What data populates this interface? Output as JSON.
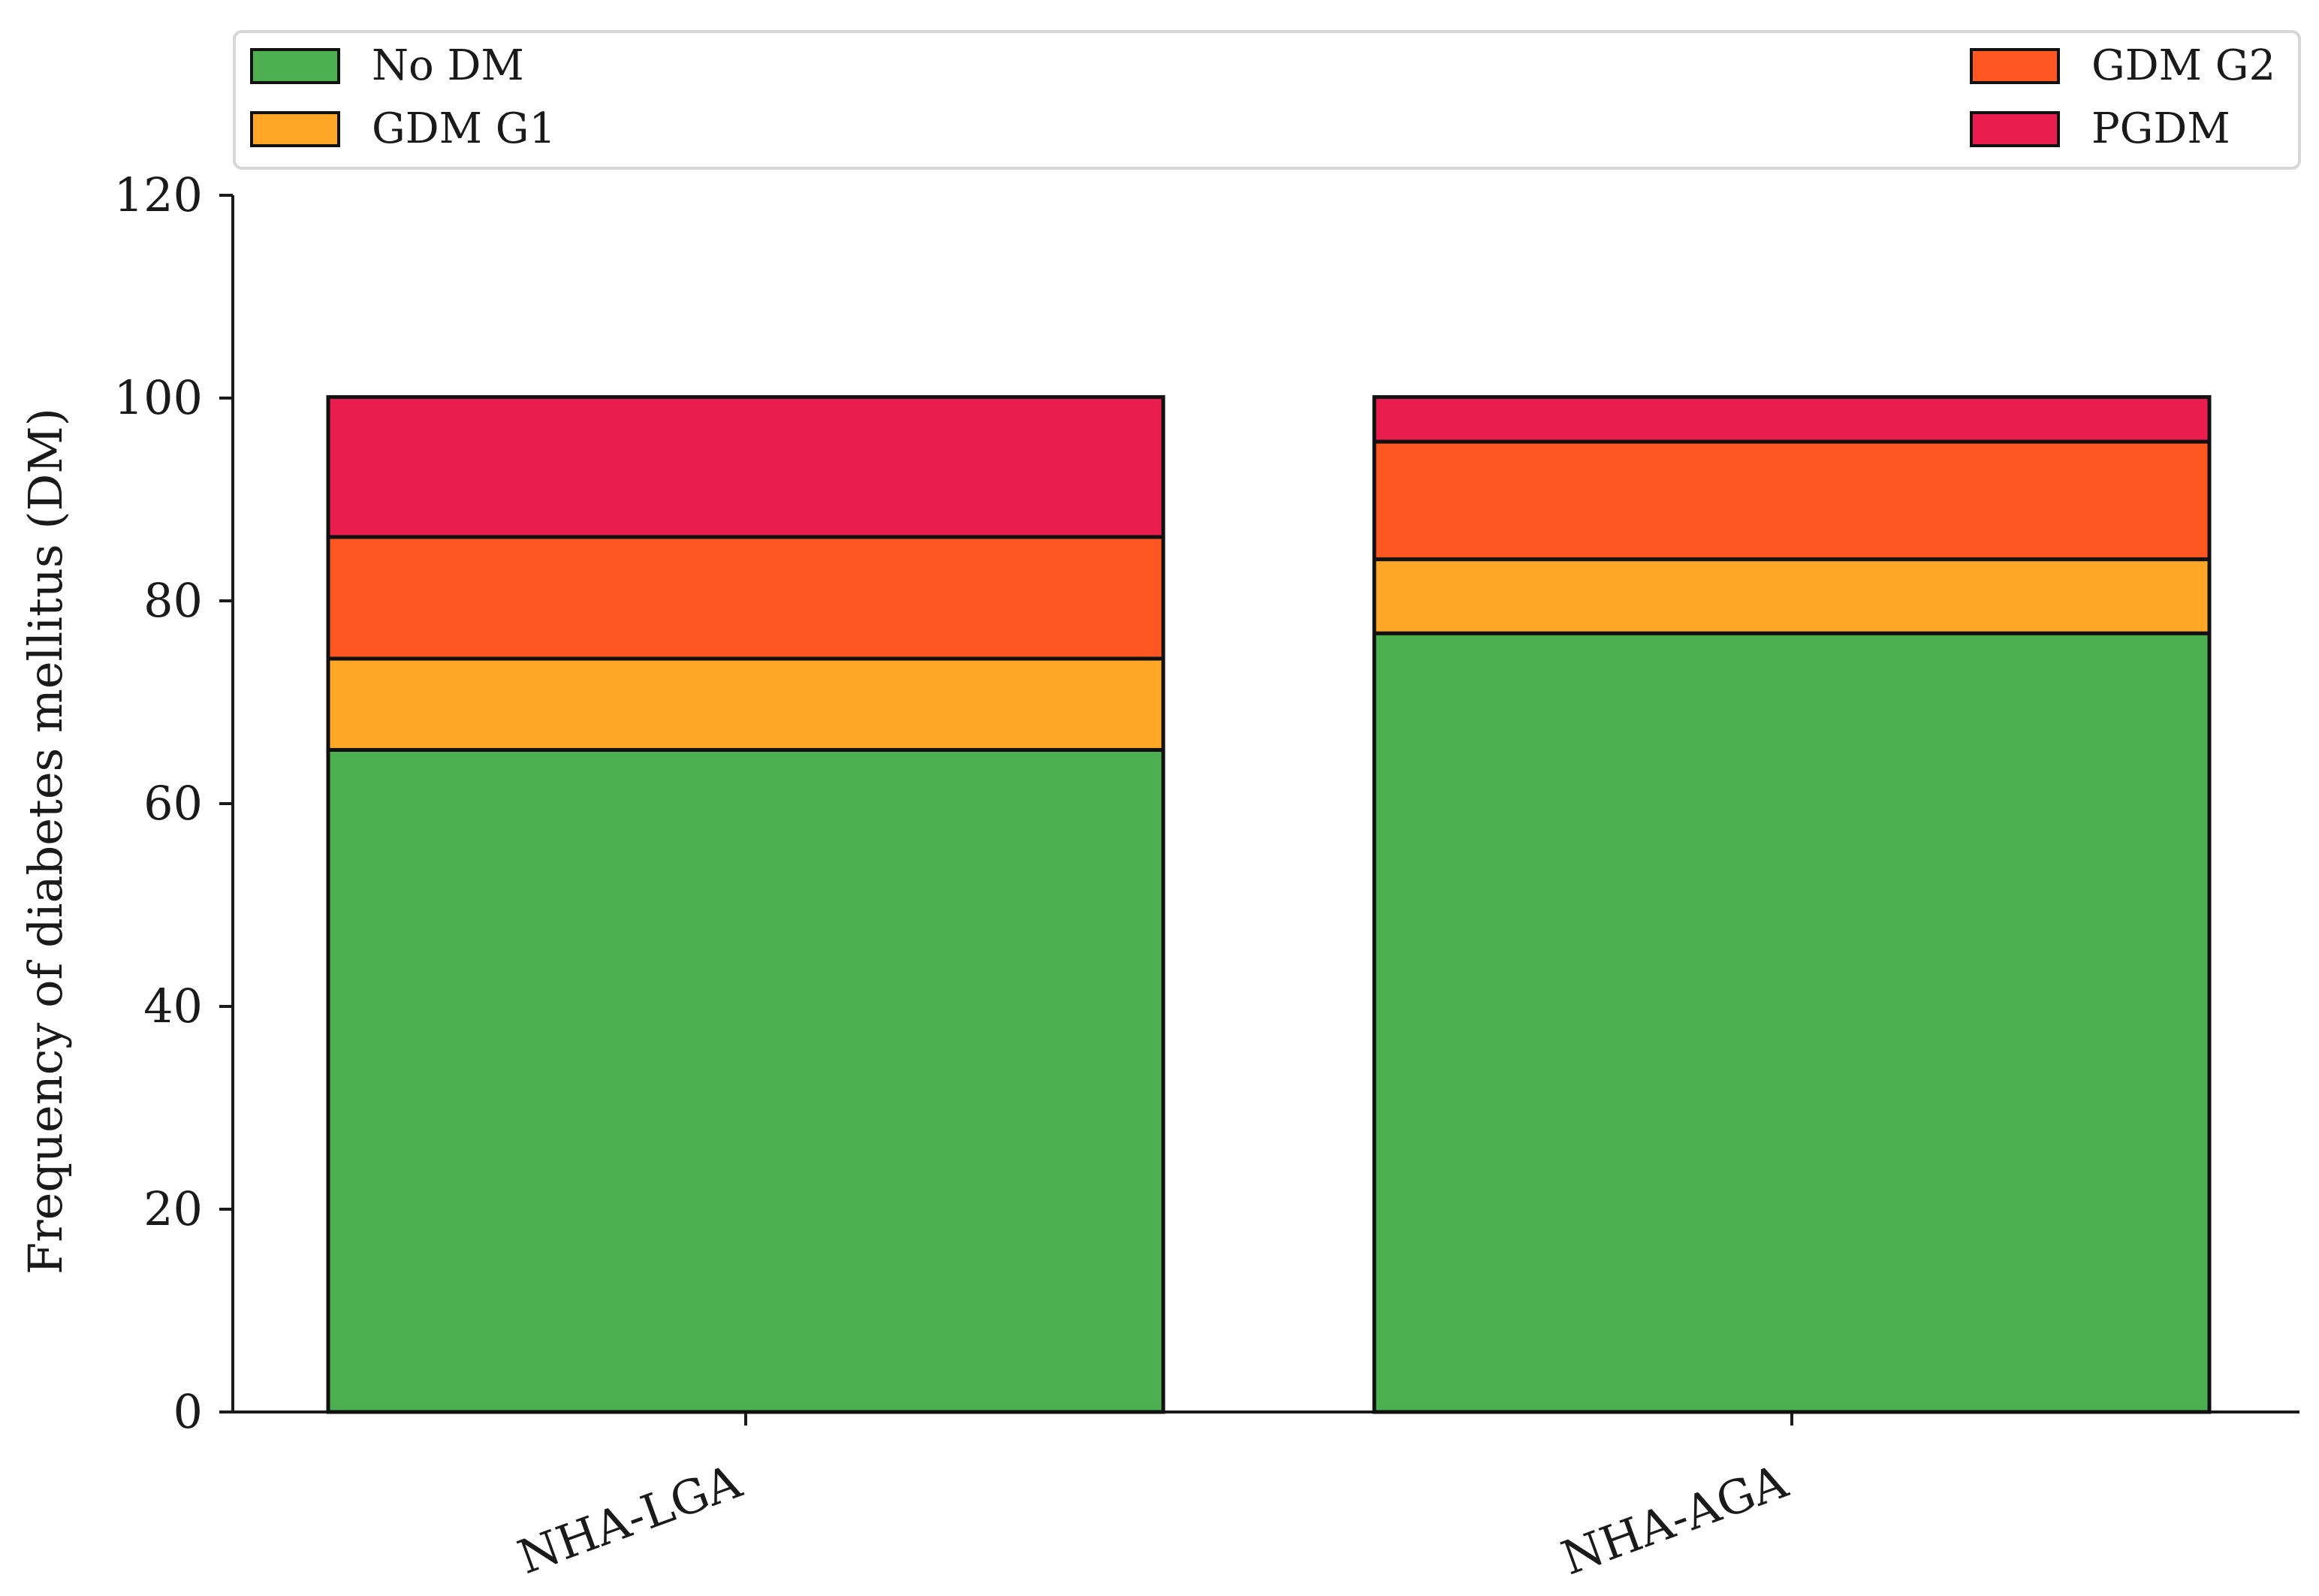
{
  "chart_data": {
    "type": "bar",
    "stacked": true,
    "categories": [
      "NHA-LGA",
      "NHA-AGA"
    ],
    "series": [
      {
        "name": "No DM",
        "values": [
          65.3,
          76.8
        ],
        "color": "#4caf50"
      },
      {
        "name": "GDM G1",
        "values": [
          9.0,
          7.3
        ],
        "color": "#ffa726"
      },
      {
        "name": "GDM G2",
        "values": [
          12.0,
          11.6
        ],
        "color": "#ff5722"
      },
      {
        "name": "PGDM",
        "values": [
          13.8,
          4.4
        ],
        "color": "#e91e4f"
      }
    ],
    "title": "",
    "xlabel": "",
    "ylabel": "Frequency of diabetes mellitus (DM)",
    "ylim": [
      0,
      120
    ],
    "yticks": [
      "0",
      "20",
      "40",
      "60",
      "80",
      "100",
      "120"
    ],
    "grid": false,
    "legend": {
      "placement": "top",
      "left_entries": [
        "No DM",
        "GDM G1"
      ],
      "right_entries": [
        "GDM G2",
        "PGDM"
      ]
    }
  }
}
